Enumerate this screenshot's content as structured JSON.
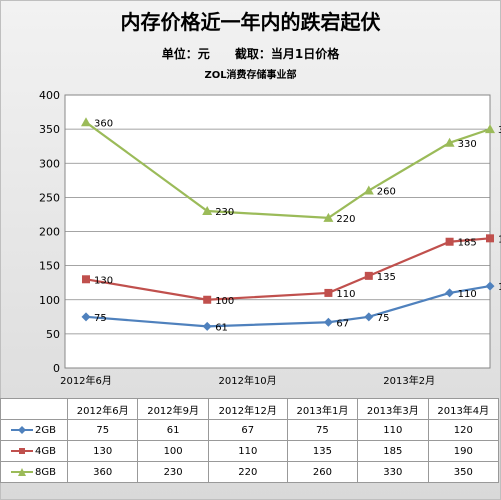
{
  "chart_data": {
    "type": "line",
    "title": "内存价格近一年内的跌宕起伏",
    "subtitle": "单位：元      截取：当月1日价格",
    "note": "ZOL消费存储事业部",
    "ylabel": "",
    "ylim": [
      0,
      400
    ],
    "yticks": [
      0,
      50,
      100,
      150,
      200,
      250,
      300,
      350,
      400
    ],
    "x_axis_labels": [
      "2012年6月",
      "2012年10月",
      "2013年2月"
    ],
    "categories": [
      "2012年6月",
      "2012年9月",
      "2012年12月",
      "2013年1月",
      "2013年3月",
      "2013年4月"
    ],
    "series": [
      {
        "name": "2GB",
        "color": "#4f81bd",
        "marker": "diamond",
        "values": [
          75,
          61,
          67,
          75,
          110,
          120
        ]
      },
      {
        "name": "4GB",
        "color": "#c0504d",
        "marker": "square",
        "values": [
          130,
          100,
          110,
          135,
          185,
          190
        ]
      },
      {
        "name": "8GB",
        "color": "#9bbb59",
        "marker": "triangle",
        "values": [
          360,
          230,
          220,
          260,
          330,
          350
        ]
      }
    ],
    "legend": "bottom-table",
    "grid": true
  }
}
